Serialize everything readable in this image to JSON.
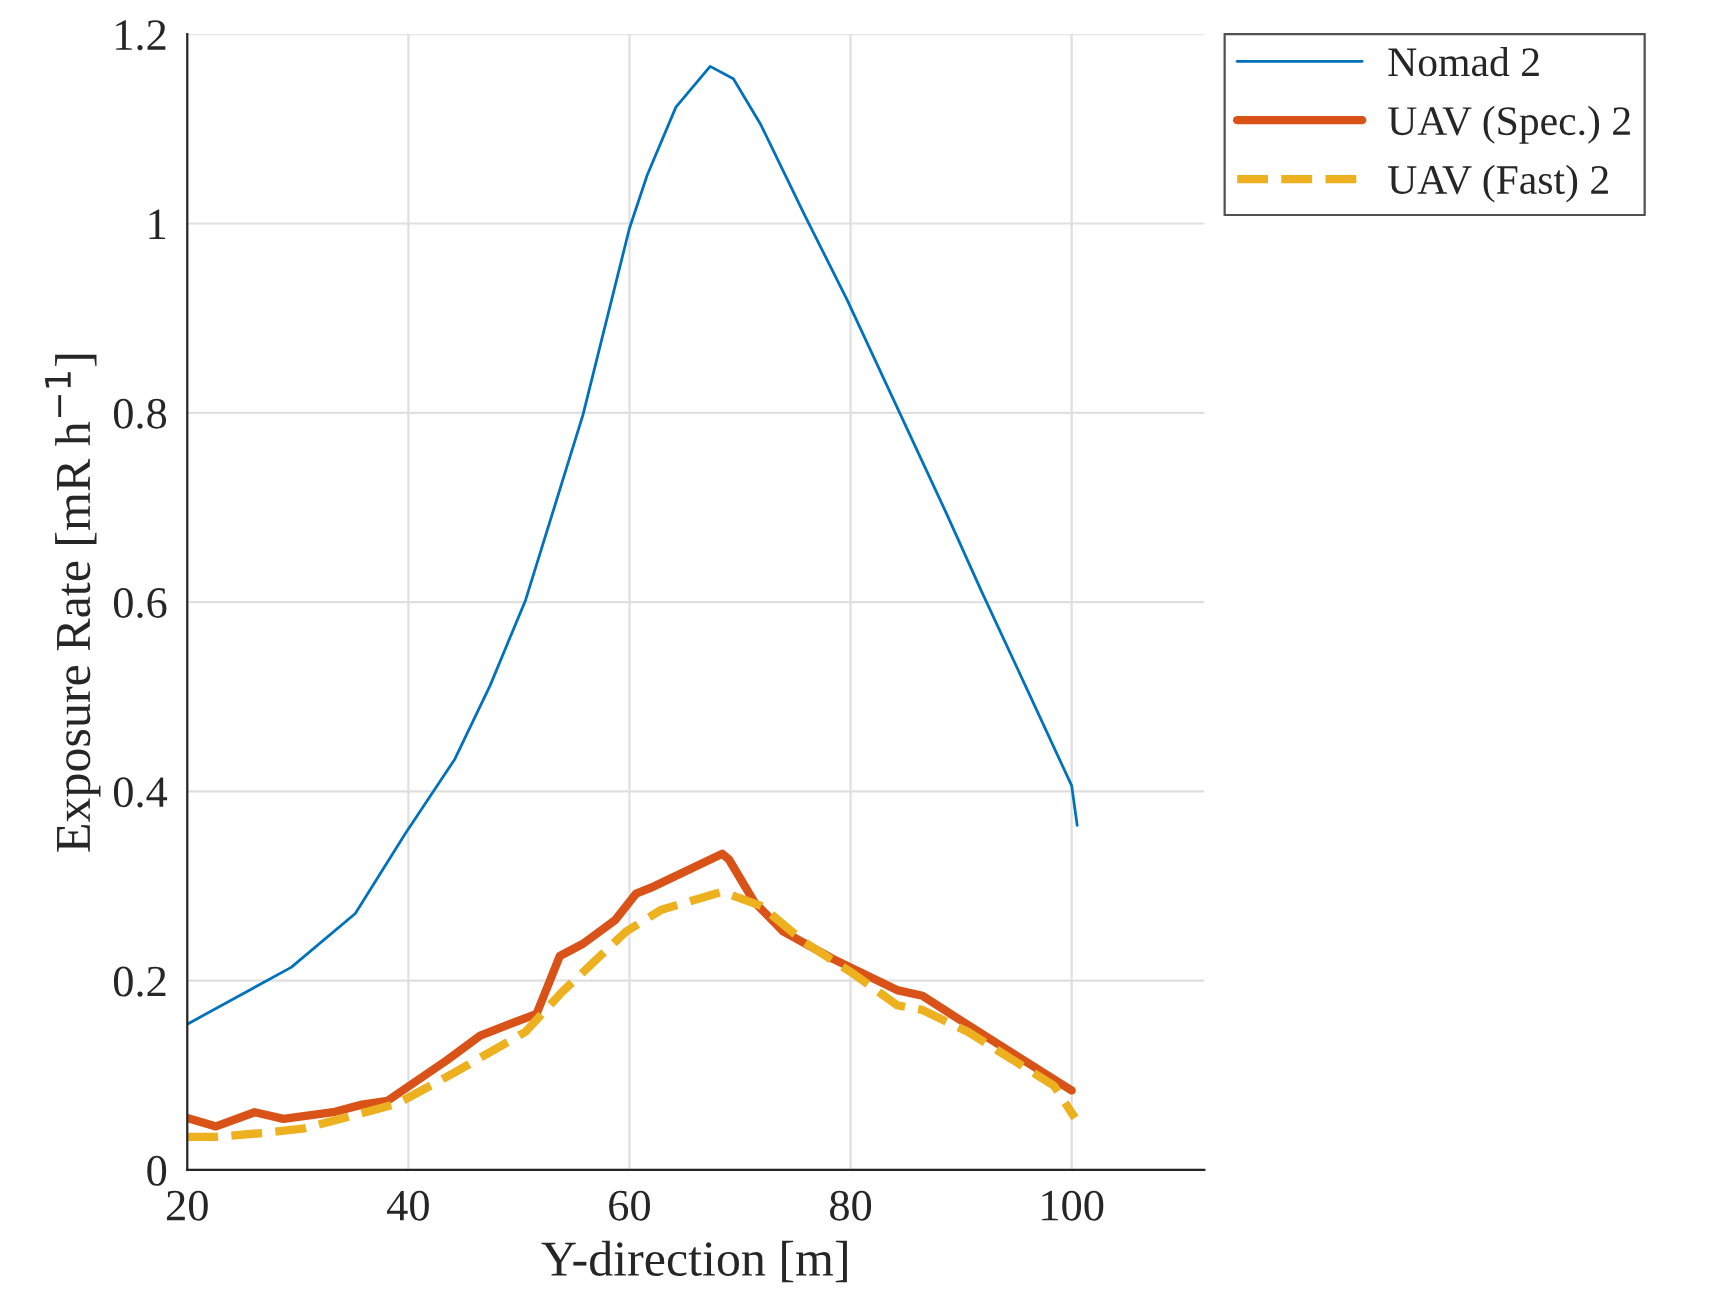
{
  "chart_data": {
    "type": "line",
    "xlabel": "Y-direction [m]",
    "ylabel": "Exposure Rate [mR h$^{−1}$]",
    "xlim": [
      20,
      112
    ],
    "xticks": [
      20,
      40,
      60,
      80,
      100
    ],
    "ylim": [
      0,
      1.2
    ],
    "yticks": [
      0,
      0.2,
      0.4,
      0.6,
      0.8,
      1,
      1.2
    ],
    "grid": true,
    "legend": "top right",
    "marker": "none",
    "series": [
      {
        "name": "Nomad 2",
        "color": "#0072bd",
        "line_style": "solid",
        "x": [
          20,
          29.4,
          35.2,
          39.7,
          44.2,
          47.4,
          50.6,
          55.8,
          60,
          61.6,
          64.2,
          67.3,
          69.4,
          71.9,
          75.8,
          79.7,
          84.2,
          88.7,
          91.9,
          95.8,
          100,
          100.5
        ],
        "values": [
          0.154,
          0.214,
          0.271,
          0.355,
          0.434,
          0.512,
          0.602,
          0.798,
          0.995,
          1.051,
          1.123,
          1.166,
          1.153,
          1.104,
          1.01,
          0.919,
          0.806,
          0.693,
          0.61,
          0.512,
          0.406,
          0.364
        ]
      },
      {
        "name": "UAV (Spec.) 2",
        "color": "#d95319",
        "line_style": "solid",
        "x": [
          20,
          22.6,
          26.1,
          28.7,
          33.2,
          35.8,
          38.1,
          43.5,
          46.5,
          51.6,
          53.7,
          55.8,
          58.7,
          60.6,
          61.9,
          68.4,
          69,
          71.3,
          73.9,
          78.4,
          84.2,
          86.5,
          91.3,
          100
        ],
        "values": [
          0.055,
          0.046,
          0.061,
          0.054,
          0.061,
          0.069,
          0.073,
          0.116,
          0.142,
          0.165,
          0.226,
          0.239,
          0.264,
          0.292,
          0.298,
          0.334,
          0.328,
          0.283,
          0.252,
          0.223,
          0.19,
          0.184,
          0.148,
          0.084
        ]
      },
      {
        "name": "UAV (Fast) 2",
        "color": "#edb120",
        "line_style": "dashed",
        "x": [
          20,
          22.6,
          26.8,
          30.6,
          35.2,
          39,
          44.2,
          50.6,
          53.9,
          59.7,
          62.9,
          68.4,
          71.9,
          75.8,
          80.3,
          84.2,
          86.5,
          90.6,
          98.4,
          100.3
        ],
        "values": [
          0.035,
          0.035,
          0.039,
          0.044,
          0.058,
          0.07,
          0.103,
          0.146,
          0.188,
          0.252,
          0.275,
          0.294,
          0.279,
          0.241,
          0.207,
          0.174,
          0.169,
          0.146,
          0.089,
          0.055
        ]
      }
    ]
  }
}
